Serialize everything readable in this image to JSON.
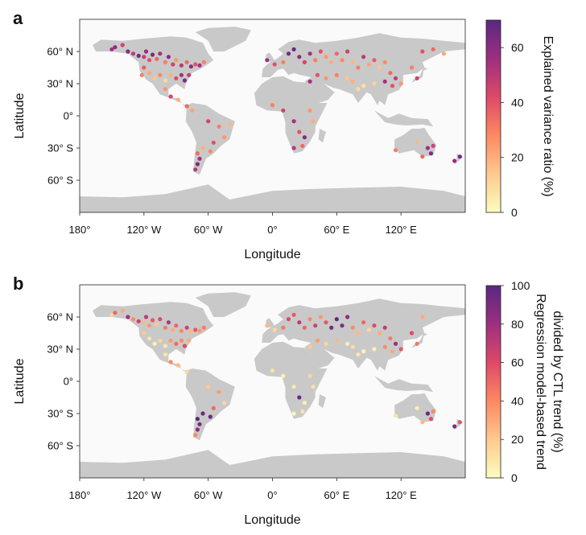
{
  "panels": [
    {
      "letter": "a",
      "xlabel": "Longitude",
      "ylabel": "Latitude",
      "x_ticks": [
        "180°",
        "120° W",
        "60° W",
        "0°",
        "60° E",
        "120° E"
      ],
      "y_ticks": [
        "60° N",
        "30° N",
        "0°",
        "30° S",
        "60° S"
      ],
      "colorbar_label_lines": [
        "Explained variance ratio (%)"
      ],
      "colorbar_ticks": [
        "0",
        "20",
        "40",
        "60"
      ]
    },
    {
      "letter": "b",
      "xlabel": "Longitude",
      "ylabel": "Latitude",
      "x_ticks": [
        "180°",
        "120° W",
        "60° W",
        "0°",
        "60° E",
        "120° E"
      ],
      "y_ticks": [
        "60° N",
        "30° N",
        "0°",
        "30° S",
        "60° S"
      ],
      "colorbar_label_lines": [
        "Regression model-based trend",
        "divided by CTL trend (%)"
      ],
      "colorbar_ticks": [
        "0",
        "20",
        "40",
        "60",
        "80",
        "100"
      ]
    }
  ],
  "chart_data": [
    {
      "type": "scatter",
      "subtype": "geographic point map (world)",
      "xlabel": "Longitude",
      "ylabel": "Latitude",
      "x_range": [
        -180,
        180
      ],
      "y_range": [
        -90,
        90
      ],
      "x_ticks": [
        -180,
        -120,
        -60,
        0,
        60,
        120
      ],
      "y_ticks": [
        60,
        30,
        0,
        -30,
        -60
      ],
      "colorbar": {
        "label": "Explained variance ratio (%)",
        "range": [
          0,
          70
        ],
        "ticks": [
          0,
          20,
          40,
          60
        ],
        "colormap": "magma_r"
      },
      "points": [
        {
          "lon": -150,
          "lat": 62,
          "v": 55
        },
        {
          "lon": -147,
          "lat": 64,
          "v": 60
        },
        {
          "lon": -140,
          "lat": 66,
          "v": 45
        },
        {
          "lon": -135,
          "lat": 60,
          "v": 62
        },
        {
          "lon": -130,
          "lat": 58,
          "v": 50
        },
        {
          "lon": -125,
          "lat": 56,
          "v": 65
        },
        {
          "lon": -120,
          "lat": 55,
          "v": 48
        },
        {
          "lon": -118,
          "lat": 60,
          "v": 58
        },
        {
          "lon": -115,
          "lat": 52,
          "v": 40
        },
        {
          "lon": -112,
          "lat": 57,
          "v": 63
        },
        {
          "lon": -108,
          "lat": 53,
          "v": 35
        },
        {
          "lon": -105,
          "lat": 58,
          "v": 55
        },
        {
          "lon": -100,
          "lat": 50,
          "v": 30
        },
        {
          "lon": -97,
          "lat": 55,
          "v": 60
        },
        {
          "lon": -93,
          "lat": 48,
          "v": 45
        },
        {
          "lon": -90,
          "lat": 52,
          "v": 25
        },
        {
          "lon": -85,
          "lat": 47,
          "v": 50
        },
        {
          "lon": -80,
          "lat": 50,
          "v": 35
        },
        {
          "lon": -76,
          "lat": 46,
          "v": 60
        },
        {
          "lon": -72,
          "lat": 48,
          "v": 40
        },
        {
          "lon": -68,
          "lat": 47,
          "v": 55
        },
        {
          "lon": -64,
          "lat": 50,
          "v": 30
        },
        {
          "lon": -120,
          "lat": 45,
          "v": 38
        },
        {
          "lon": -115,
          "lat": 40,
          "v": 22
        },
        {
          "lon": -110,
          "lat": 35,
          "v": 15
        },
        {
          "lon": -105,
          "lat": 38,
          "v": 28
        },
        {
          "lon": -100,
          "lat": 33,
          "v": 10
        },
        {
          "lon": -95,
          "lat": 38,
          "v": 20
        },
        {
          "lon": -90,
          "lat": 35,
          "v": 42
        },
        {
          "lon": -85,
          "lat": 38,
          "v": 55
        },
        {
          "lon": -82,
          "lat": 33,
          "v": 62
        },
        {
          "lon": -78,
          "lat": 38,
          "v": 48
        },
        {
          "lon": -122,
          "lat": 38,
          "v": 30
        },
        {
          "lon": -100,
          "lat": 25,
          "v": 25
        },
        {
          "lon": -95,
          "lat": 18,
          "v": 45
        },
        {
          "lon": -88,
          "lat": 15,
          "v": 20
        },
        {
          "lon": -80,
          "lat": 9,
          "v": 35
        },
        {
          "lon": -75,
          "lat": 5,
          "v": 22
        },
        {
          "lon": -60,
          "lat": -5,
          "v": 45
        },
        {
          "lon": -50,
          "lat": -10,
          "v": 30
        },
        {
          "lon": -45,
          "lat": -20,
          "v": 25
        },
        {
          "lon": -55,
          "lat": -25,
          "v": 40
        },
        {
          "lon": -65,
          "lat": -30,
          "v": 20
        },
        {
          "lon": -70,
          "lat": -35,
          "v": 35
        },
        {
          "lon": -68,
          "lat": -40,
          "v": 55
        },
        {
          "lon": -70,
          "lat": -45,
          "v": 62
        },
        {
          "lon": -72,
          "lat": -50,
          "v": 50
        },
        {
          "lon": -58,
          "lat": -33,
          "v": 28
        },
        {
          "lon": -40,
          "lat": -8,
          "v": 18
        },
        {
          "lon": -5,
          "lat": 52,
          "v": 55
        },
        {
          "lon": 2,
          "lat": 48,
          "v": 40
        },
        {
          "lon": 10,
          "lat": 50,
          "v": 30
        },
        {
          "lon": 15,
          "lat": 58,
          "v": 65
        },
        {
          "lon": 20,
          "lat": 62,
          "v": 68
        },
        {
          "lon": 25,
          "lat": 55,
          "v": 60
        },
        {
          "lon": 30,
          "lat": 50,
          "v": 45
        },
        {
          "lon": 35,
          "lat": 58,
          "v": 55
        },
        {
          "lon": 40,
          "lat": 52,
          "v": 30
        },
        {
          "lon": 45,
          "lat": 60,
          "v": 40
        },
        {
          "lon": 50,
          "lat": 55,
          "v": 25
        },
        {
          "lon": 55,
          "lat": 50,
          "v": 20
        },
        {
          "lon": 60,
          "lat": 58,
          "v": 35
        },
        {
          "lon": 65,
          "lat": 52,
          "v": 28
        },
        {
          "lon": 70,
          "lat": 60,
          "v": 45
        },
        {
          "lon": 75,
          "lat": 50,
          "v": 18
        },
        {
          "lon": 80,
          "lat": 45,
          "v": 30
        },
        {
          "lon": 85,
          "lat": 55,
          "v": 50
        },
        {
          "lon": 90,
          "lat": 48,
          "v": 22
        },
        {
          "lon": 95,
          "lat": 52,
          "v": 38
        },
        {
          "lon": 100,
          "lat": 45,
          "v": 15
        },
        {
          "lon": 105,
          "lat": 50,
          "v": 28
        },
        {
          "lon": 110,
          "lat": 40,
          "v": 35
        },
        {
          "lon": 115,
          "lat": 35,
          "v": 48
        },
        {
          "lon": 120,
          "lat": 30,
          "v": 25
        },
        {
          "lon": 112,
          "lat": 28,
          "v": 40
        },
        {
          "lon": 105,
          "lat": 32,
          "v": 55
        },
        {
          "lon": 95,
          "lat": 30,
          "v": 12
        },
        {
          "lon": 85,
          "lat": 28,
          "v": 8
        },
        {
          "lon": 80,
          "lat": 25,
          "v": 10
        },
        {
          "lon": 75,
          "lat": 32,
          "v": 20
        },
        {
          "lon": 70,
          "lat": 35,
          "v": 15
        },
        {
          "lon": 60,
          "lat": 38,
          "v": 30
        },
        {
          "lon": 50,
          "lat": 35,
          "v": 25
        },
        {
          "lon": 42,
          "lat": 38,
          "v": 40
        },
        {
          "lon": 35,
          "lat": 32,
          "v": 55
        },
        {
          "lon": 130,
          "lat": 45,
          "v": 30
        },
        {
          "lon": 135,
          "lat": 35,
          "v": 45
        },
        {
          "lon": 140,
          "lat": 60,
          "v": 40
        },
        {
          "lon": 150,
          "lat": 62,
          "v": 35
        },
        {
          "lon": 160,
          "lat": 58,
          "v": 22
        },
        {
          "lon": 0,
          "lat": 10,
          "v": 30
        },
        {
          "lon": 10,
          "lat": 5,
          "v": 45
        },
        {
          "lon": 20,
          "lat": -5,
          "v": 55
        },
        {
          "lon": 25,
          "lat": -15,
          "v": 40
        },
        {
          "lon": 30,
          "lat": -20,
          "v": 62
        },
        {
          "lon": 28,
          "lat": -28,
          "v": 35
        },
        {
          "lon": 20,
          "lat": -30,
          "v": 50
        },
        {
          "lon": 35,
          "lat": 5,
          "v": 25
        },
        {
          "lon": 38,
          "lat": -5,
          "v": 20
        },
        {
          "lon": 115,
          "lat": -32,
          "v": 30
        },
        {
          "lon": 135,
          "lat": -25,
          "v": 18
        },
        {
          "lon": 145,
          "lat": -30,
          "v": 55
        },
        {
          "lon": 148,
          "lat": -35,
          "v": 62
        },
        {
          "lon": 150,
          "lat": -28,
          "v": 45
        },
        {
          "lon": 140,
          "lat": -38,
          "v": 35
        },
        {
          "lon": 170,
          "lat": -42,
          "v": 58
        },
        {
          "lon": 175,
          "lat": -38,
          "v": 65
        }
      ]
    },
    {
      "type": "scatter",
      "subtype": "geographic point map (world)",
      "xlabel": "Longitude",
      "ylabel": "Latitude",
      "x_range": [
        -180,
        180
      ],
      "y_range": [
        -90,
        90
      ],
      "x_ticks": [
        -180,
        -120,
        -60,
        0,
        60,
        120
      ],
      "y_ticks": [
        60,
        30,
        0,
        -30,
        -60
      ],
      "colorbar": {
        "label": "Regression model-based trend divided by CTL trend (%)",
        "range": [
          0,
          100
        ],
        "ticks": [
          0,
          20,
          40,
          60,
          80,
          100
        ],
        "colormap": "magma_r"
      },
      "points": [
        {
          "lon": -150,
          "lat": 62,
          "v": 15
        },
        {
          "lon": -147,
          "lat": 64,
          "v": 50
        },
        {
          "lon": -140,
          "lat": 66,
          "v": 30
        },
        {
          "lon": -135,
          "lat": 60,
          "v": 80
        },
        {
          "lon": -130,
          "lat": 58,
          "v": 40
        },
        {
          "lon": -125,
          "lat": 56,
          "v": 65
        },
        {
          "lon": -120,
          "lat": 55,
          "v": 25
        },
        {
          "lon": -118,
          "lat": 60,
          "v": 70
        },
        {
          "lon": -115,
          "lat": 52,
          "v": 35
        },
        {
          "lon": -112,
          "lat": 57,
          "v": 55
        },
        {
          "lon": -108,
          "lat": 53,
          "v": 20
        },
        {
          "lon": -105,
          "lat": 58,
          "v": 60
        },
        {
          "lon": -100,
          "lat": 50,
          "v": 45
        },
        {
          "lon": -97,
          "lat": 55,
          "v": 75
        },
        {
          "lon": -93,
          "lat": 48,
          "v": 30
        },
        {
          "lon": -90,
          "lat": 52,
          "v": 50
        },
        {
          "lon": -85,
          "lat": 47,
          "v": 40
        },
        {
          "lon": -80,
          "lat": 50,
          "v": 65
        },
        {
          "lon": -76,
          "lat": 46,
          "v": 25
        },
        {
          "lon": -72,
          "lat": 48,
          "v": 55
        },
        {
          "lon": -68,
          "lat": 47,
          "v": 35
        },
        {
          "lon": -64,
          "lat": 50,
          "v": 45
        },
        {
          "lon": -120,
          "lat": 45,
          "v": 20
        },
        {
          "lon": -115,
          "lat": 40,
          "v": 10
        },
        {
          "lon": -110,
          "lat": 35,
          "v": 5
        },
        {
          "lon": -105,
          "lat": 38,
          "v": 15
        },
        {
          "lon": -100,
          "lat": 33,
          "v": 8
        },
        {
          "lon": -95,
          "lat": 38,
          "v": 35
        },
        {
          "lon": -90,
          "lat": 35,
          "v": 50
        },
        {
          "lon": -85,
          "lat": 38,
          "v": 40
        },
        {
          "lon": -82,
          "lat": 33,
          "v": 60
        },
        {
          "lon": -78,
          "lat": 38,
          "v": 30
        },
        {
          "lon": -100,
          "lat": 25,
          "v": 10
        },
        {
          "lon": -95,
          "lat": 18,
          "v": 40
        },
        {
          "lon": -88,
          "lat": 15,
          "v": 25
        },
        {
          "lon": -80,
          "lat": 9,
          "v": 15
        },
        {
          "lon": -60,
          "lat": -5,
          "v": 20
        },
        {
          "lon": -50,
          "lat": -10,
          "v": 35
        },
        {
          "lon": -45,
          "lat": -20,
          "v": 15
        },
        {
          "lon": -55,
          "lat": -25,
          "v": 50
        },
        {
          "lon": -65,
          "lat": -30,
          "v": 95
        },
        {
          "lon": -70,
          "lat": -35,
          "v": 100
        },
        {
          "lon": -68,
          "lat": -40,
          "v": 90
        },
        {
          "lon": -70,
          "lat": -45,
          "v": 85
        },
        {
          "lon": -72,
          "lat": -50,
          "v": 40
        },
        {
          "lon": -58,
          "lat": -33,
          "v": 95
        },
        {
          "lon": -5,
          "lat": 52,
          "v": 25
        },
        {
          "lon": 2,
          "lat": 48,
          "v": 15
        },
        {
          "lon": 10,
          "lat": 50,
          "v": 45
        },
        {
          "lon": 15,
          "lat": 58,
          "v": 60
        },
        {
          "lon": 20,
          "lat": 62,
          "v": 55
        },
        {
          "lon": 25,
          "lat": 55,
          "v": 70
        },
        {
          "lon": 30,
          "lat": 50,
          "v": 50
        },
        {
          "lon": 35,
          "lat": 58,
          "v": 40
        },
        {
          "lon": 40,
          "lat": 52,
          "v": 65
        },
        {
          "lon": 45,
          "lat": 60,
          "v": 35
        },
        {
          "lon": 50,
          "lat": 55,
          "v": 55
        },
        {
          "lon": 55,
          "lat": 50,
          "v": 95
        },
        {
          "lon": 60,
          "lat": 58,
          "v": 100
        },
        {
          "lon": 65,
          "lat": 52,
          "v": 90
        },
        {
          "lon": 70,
          "lat": 60,
          "v": 85
        },
        {
          "lon": 75,
          "lat": 50,
          "v": 40
        },
        {
          "lon": 80,
          "lat": 45,
          "v": 25
        },
        {
          "lon": 85,
          "lat": 55,
          "v": 50
        },
        {
          "lon": 90,
          "lat": 48,
          "v": 15
        },
        {
          "lon": 95,
          "lat": 52,
          "v": 60
        },
        {
          "lon": 100,
          "lat": 45,
          "v": 30
        },
        {
          "lon": 105,
          "lat": 50,
          "v": 70
        },
        {
          "lon": 110,
          "lat": 40,
          "v": 45
        },
        {
          "lon": 115,
          "lat": 35,
          "v": 80
        },
        {
          "lon": 120,
          "lat": 30,
          "v": 55
        },
        {
          "lon": 112,
          "lat": 28,
          "v": 30
        },
        {
          "lon": 105,
          "lat": 32,
          "v": 40
        },
        {
          "lon": 95,
          "lat": 30,
          "v": 5
        },
        {
          "lon": 85,
          "lat": 28,
          "v": 3
        },
        {
          "lon": 80,
          "lat": 25,
          "v": 8
        },
        {
          "lon": 75,
          "lat": 32,
          "v": 12
        },
        {
          "lon": 70,
          "lat": 35,
          "v": 6
        },
        {
          "lon": 60,
          "lat": 38,
          "v": 25
        },
        {
          "lon": 50,
          "lat": 35,
          "v": 15
        },
        {
          "lon": 42,
          "lat": 38,
          "v": 35
        },
        {
          "lon": 35,
          "lat": 32,
          "v": 20
        },
        {
          "lon": 130,
          "lat": 45,
          "v": 60
        },
        {
          "lon": 135,
          "lat": 35,
          "v": 45
        },
        {
          "lon": 140,
          "lat": 60,
          "v": 30
        },
        {
          "lon": 0,
          "lat": 10,
          "v": 10
        },
        {
          "lon": 10,
          "lat": 5,
          "v": 5
        },
        {
          "lon": 20,
          "lat": -5,
          "v": 8
        },
        {
          "lon": 25,
          "lat": -15,
          "v": 95
        },
        {
          "lon": 30,
          "lat": -20,
          "v": 5
        },
        {
          "lon": 28,
          "lat": -28,
          "v": 10
        },
        {
          "lon": 20,
          "lat": -30,
          "v": 3
        },
        {
          "lon": 35,
          "lat": 5,
          "v": 15
        },
        {
          "lon": 38,
          "lat": -5,
          "v": 12
        },
        {
          "lon": 115,
          "lat": -32,
          "v": 10
        },
        {
          "lon": 135,
          "lat": -25,
          "v": 5
        },
        {
          "lon": 145,
          "lat": -30,
          "v": 95
        },
        {
          "lon": 148,
          "lat": -35,
          "v": 60
        },
        {
          "lon": 150,
          "lat": -28,
          "v": 40
        },
        {
          "lon": 140,
          "lat": -38,
          "v": 25
        },
        {
          "lon": 170,
          "lat": -42,
          "v": 90
        },
        {
          "lon": 175,
          "lat": -38,
          "v": 55
        }
      ]
    }
  ]
}
